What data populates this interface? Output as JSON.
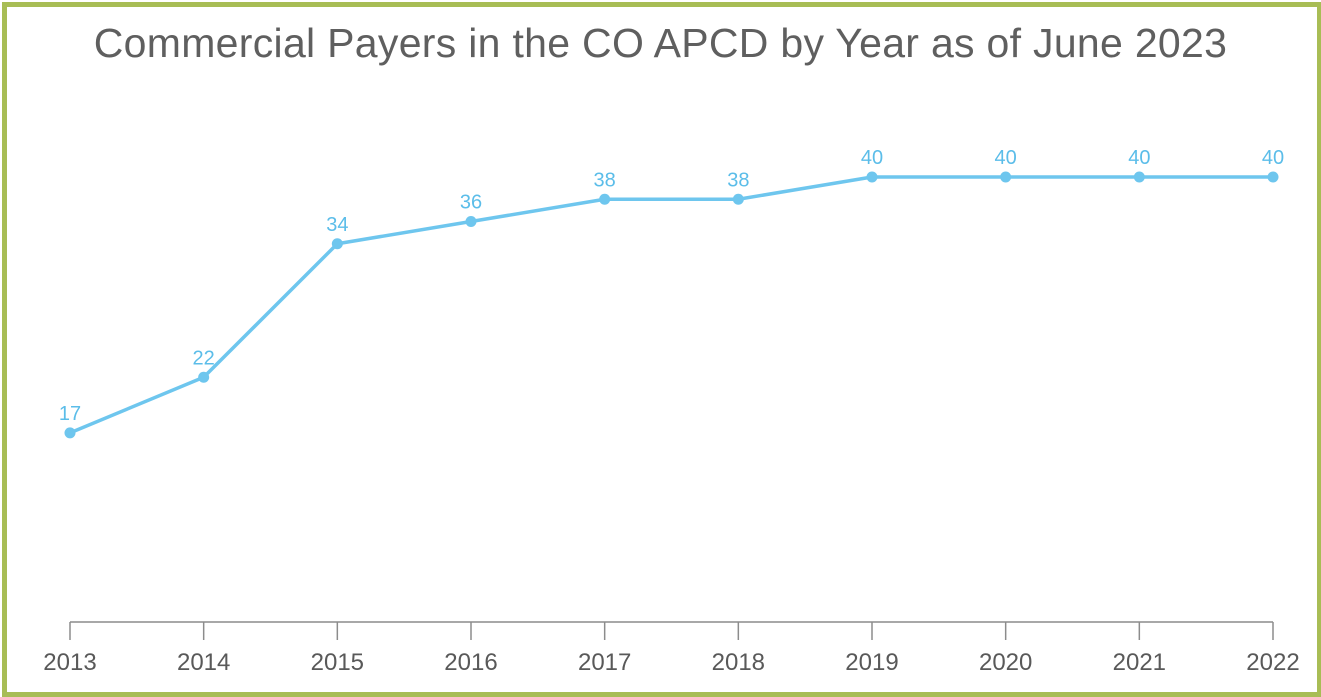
{
  "chart_data": {
    "type": "line",
    "title": "Commercial Payers in the CO APCD by Year as of June 2023",
    "xlabel": "",
    "ylabel": "",
    "categories": [
      "2013",
      "2014",
      "2015",
      "2016",
      "2017",
      "2018",
      "2019",
      "2020",
      "2021",
      "2022"
    ],
    "series": [
      {
        "values": [
          17,
          22,
          34,
          36,
          38,
          38,
          40,
          40,
          40,
          40
        ]
      }
    ],
    "data_labels": [
      "17",
      "22",
      "34",
      "36",
      "38",
      "38",
      "40",
      "40",
      "40",
      "40"
    ],
    "ylim": [
      0,
      56
    ],
    "grid": false,
    "legend": "none"
  },
  "colors": {
    "line": "#6ec6ee",
    "label": "#5bbde9",
    "axis": "#8c8c8c",
    "frame": "#a8bd55",
    "title": "#5f5f5f"
  }
}
